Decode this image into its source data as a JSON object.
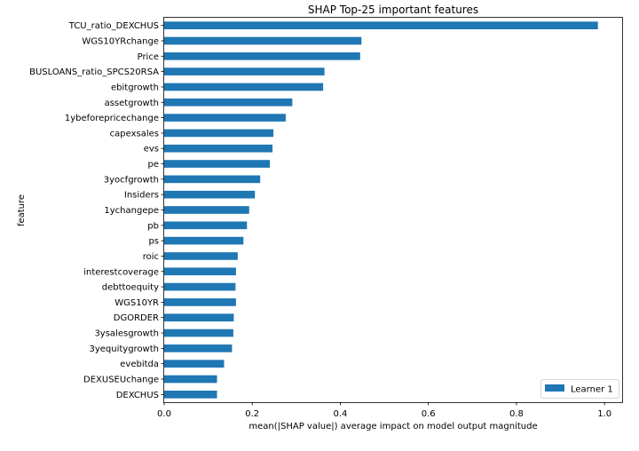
{
  "chart_data": {
    "type": "bar",
    "orientation": "horizontal",
    "title": "SHAP Top-25 important features",
    "xlabel": "mean(|SHAP value|) average impact on model output magnitude",
    "ylabel": "feature",
    "xlim": [
      0.0,
      1.04
    ],
    "xticks": [
      0.0,
      0.2,
      0.4,
      0.6,
      0.8,
      1.0
    ],
    "xtick_labels": [
      "0.0",
      "0.2",
      "0.4",
      "0.6",
      "0.8",
      "1.0"
    ],
    "grid": false,
    "legend_position": "bottom-right",
    "bar_color": "#1f77b4",
    "categories": [
      "TCU_ratio_DEXCHUS",
      "WGS10YRchange",
      "Price",
      "BUSLOANS_ratio_SPCS20RSA",
      "ebitgrowth",
      "assetgrowth",
      "1ybeforepricechange",
      "capexsales",
      "evs",
      "pe ",
      "3yocfgrowth",
      "Insiders",
      "1ychangepe",
      "pb",
      "ps",
      "roic",
      "interestcoverage",
      "debttoequity",
      "WGS10YR",
      "DGORDER",
      "3ysalesgrowth",
      "3yequitygrowth",
      "evebitda",
      "DEXUSEUchange",
      "DEXCHUS"
    ],
    "series": [
      {
        "name": "Learner 1",
        "values": [
          0.985,
          0.448,
          0.445,
          0.364,
          0.361,
          0.291,
          0.276,
          0.248,
          0.246,
          0.24,
          0.218,
          0.206,
          0.193,
          0.188,
          0.18,
          0.167,
          0.163,
          0.162,
          0.163,
          0.158,
          0.157,
          0.154,
          0.136,
          0.12,
          0.12
        ]
      }
    ]
  }
}
